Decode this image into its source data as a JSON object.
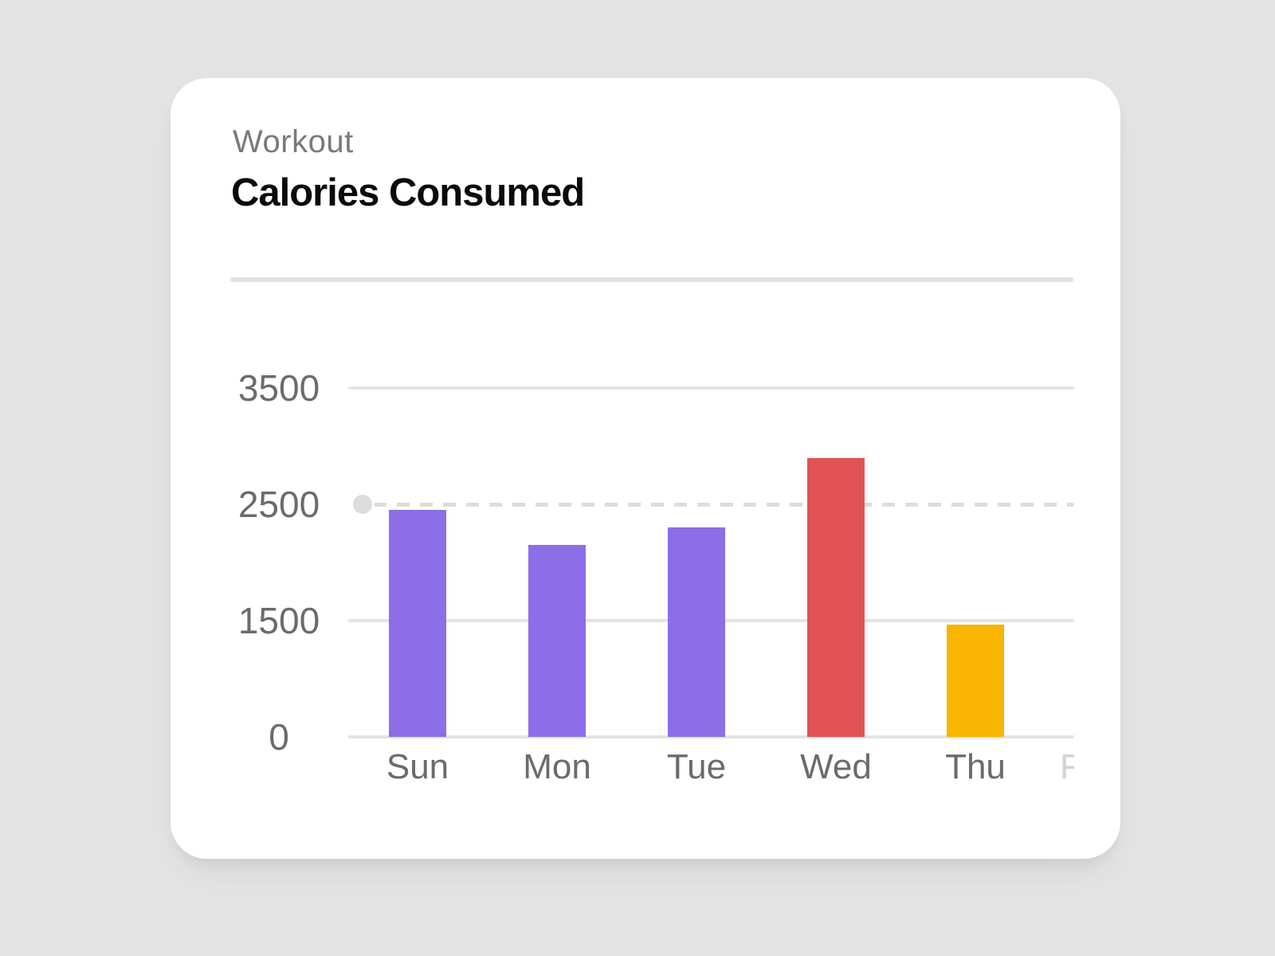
{
  "card": {
    "eyebrow": "Workout",
    "title": "Calories Consumed"
  },
  "chart_data": {
    "type": "bar",
    "title": "Calories Consumed",
    "subtitle": "Workout",
    "categories": [
      "Sun",
      "Mon",
      "Tue",
      "Wed",
      "Thu"
    ],
    "values": [
      2450,
      2150,
      2300,
      2900,
      1450
    ],
    "bar_colors": [
      "#8C6FE8",
      "#8C6FE8",
      "#8C6FE8",
      "#E25252",
      "#F8B500"
    ],
    "y_ticks": [
      0,
      1500,
      2500,
      3500
    ],
    "y_tick_labels": [
      "0",
      "1500",
      "2500",
      "3500"
    ],
    "dashed_guide": {
      "value": 2500,
      "has_dot": true
    },
    "clipped_next_label": "F",
    "xlabel": "",
    "ylabel": "",
    "layout": {
      "grid": true,
      "legend": "none",
      "y_ticks_evenly_spaced": true,
      "solid_grid_values": [
        0,
        1500,
        3500
      ]
    }
  },
  "colors": {
    "page_bg": "#E3E3E3",
    "card_bg": "#FFFFFF",
    "eyebrow_text": "#7A7A7A",
    "title_text": "#0B0B0B",
    "axis_label_text": "#6B6B6B",
    "gridline": "#E3E3E3",
    "dashed_guide": "#DFDCD5",
    "guide_dot": "#DCDCDC",
    "clipped_label_text": "#D2D2D2"
  }
}
